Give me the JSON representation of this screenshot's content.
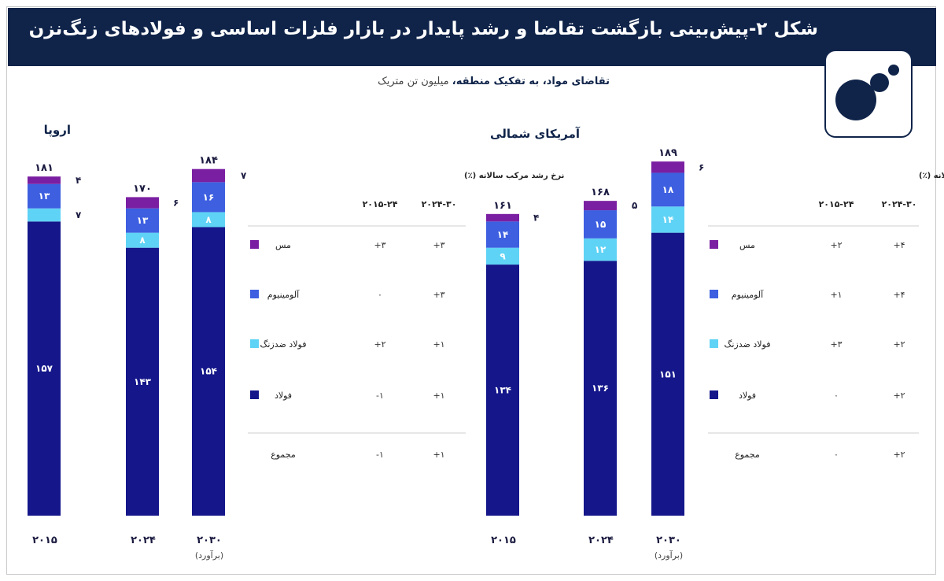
{
  "header": {
    "title": "شکل ۲-پیش‌بینی بازگشت تقاضا و رشد پایدار در بازار فلزات اساسی و فولادهای زنگ‌نزن",
    "subtitle_bold": "تقاضای مواد، به تفکیک منطقه،",
    "subtitle_unit": "میلیون تن متریک"
  },
  "colors": {
    "header_bg": "#10244a",
    "copper": "#7b1fa2",
    "aluminium": "#3d5fe0",
    "stainless": "#5fd3f5",
    "steel": "#14168a"
  },
  "chart_data": [
    {
      "type": "bar",
      "title": "اروپا",
      "categories": [
        "۲۰۱۵",
        "۲۰۲۴",
        "۲۰۳۰"
      ],
      "category_notes": [
        "",
        "",
        "(برآورد)"
      ],
      "totals": [
        181,
        170,
        184
      ],
      "total_labels": [
        "۱۸۱",
        "۱۷۰",
        "۱۸۴"
      ],
      "series": [
        {
          "name": "فولاد",
          "color": "#14168a",
          "values": [
            157,
            143,
            154
          ],
          "labels": [
            "۱۵۷",
            "۱۴۳",
            "۱۵۴"
          ]
        },
        {
          "name": "فولاد ضدزنگ",
          "color": "#5fd3f5",
          "values": [
            7,
            8,
            8
          ],
          "labels": [
            "۷",
            "۸",
            "۸"
          ]
        },
        {
          "name": "آلومینیوم",
          "color": "#3d5fe0",
          "values": [
            13,
            13,
            16
          ],
          "labels": [
            "۱۳",
            "۱۳",
            "۱۶"
          ]
        },
        {
          "name": "مس",
          "color": "#7b1fa2",
          "values": [
            4,
            6,
            7
          ],
          "labels": [
            "۴",
            "۶",
            "۷"
          ]
        }
      ],
      "growth_table": {
        "heading": "نرخ رشد مرکب سالانه (٪)",
        "columns": [
          "۲۰۱۵-۲۴",
          "۲۰۲۴-۳۰"
        ],
        "rows": [
          {
            "label": "مس",
            "color": "#7b1fa2",
            "values": [
              "+۳",
              "+۳"
            ]
          },
          {
            "label": "آلومینیوم",
            "color": "#3d5fe0",
            "values": [
              "۰",
              "+۳"
            ]
          },
          {
            "label": "فولاد ضدزنگ",
            "color": "#5fd3f5",
            "values": [
              "+۲",
              "+۱"
            ]
          },
          {
            "label": "فولاد",
            "color": "#14168a",
            "values": [
              "-۱",
              "+۱"
            ]
          },
          {
            "label": "مجموع",
            "color": "",
            "values": [
              "-۱",
              "+۱"
            ]
          }
        ]
      }
    },
    {
      "type": "bar",
      "title": "آمریکای شمالی",
      "categories": [
        "۲۰۱۵",
        "۲۰۲۴",
        "۲۰۳۰"
      ],
      "category_notes": [
        "",
        "",
        "(برآورد)"
      ],
      "totals": [
        161,
        168,
        189
      ],
      "total_labels": [
        "۱۶۱",
        "۱۶۸",
        "۱۸۹"
      ],
      "series": [
        {
          "name": "فولاد",
          "color": "#14168a",
          "values": [
            134,
            136,
            151
          ],
          "labels": [
            "۱۳۴",
            "۱۳۶",
            "۱۵۱"
          ]
        },
        {
          "name": "فولاد ضدزنگ",
          "color": "#5fd3f5",
          "values": [
            9,
            12,
            14
          ],
          "labels": [
            "۹",
            "۱۲",
            "۱۴"
          ]
        },
        {
          "name": "آلومینیوم",
          "color": "#3d5fe0",
          "values": [
            14,
            15,
            18
          ],
          "labels": [
            "۱۴",
            "۱۵",
            "۱۸"
          ]
        },
        {
          "name": "مس",
          "color": "#7b1fa2",
          "values": [
            4,
            5,
            6
          ],
          "labels": [
            "۴",
            "۵",
            "۶"
          ]
        }
      ],
      "growth_table": {
        "heading": "رخ رشد مرکب سالانه (٪)",
        "columns": [
          "۲۰۱۵-۲۴",
          "۲۰۲۴-۳۰"
        ],
        "rows": [
          {
            "label": "مس",
            "color": "#7b1fa2",
            "values": [
              "+۲",
              "+۴"
            ]
          },
          {
            "label": "آلومینیوم",
            "color": "#3d5fe0",
            "values": [
              "+۱",
              "+۴"
            ]
          },
          {
            "label": "فولاد ضدزنگ",
            "color": "#5fd3f5",
            "values": [
              "+۳",
              "+۲"
            ]
          },
          {
            "label": "فولاد",
            "color": "#14168a",
            "values": [
              "۰",
              "+۲"
            ]
          },
          {
            "label": "مجموع",
            "color": "",
            "values": [
              "۰",
              "+۲"
            ]
          }
        ]
      }
    }
  ]
}
